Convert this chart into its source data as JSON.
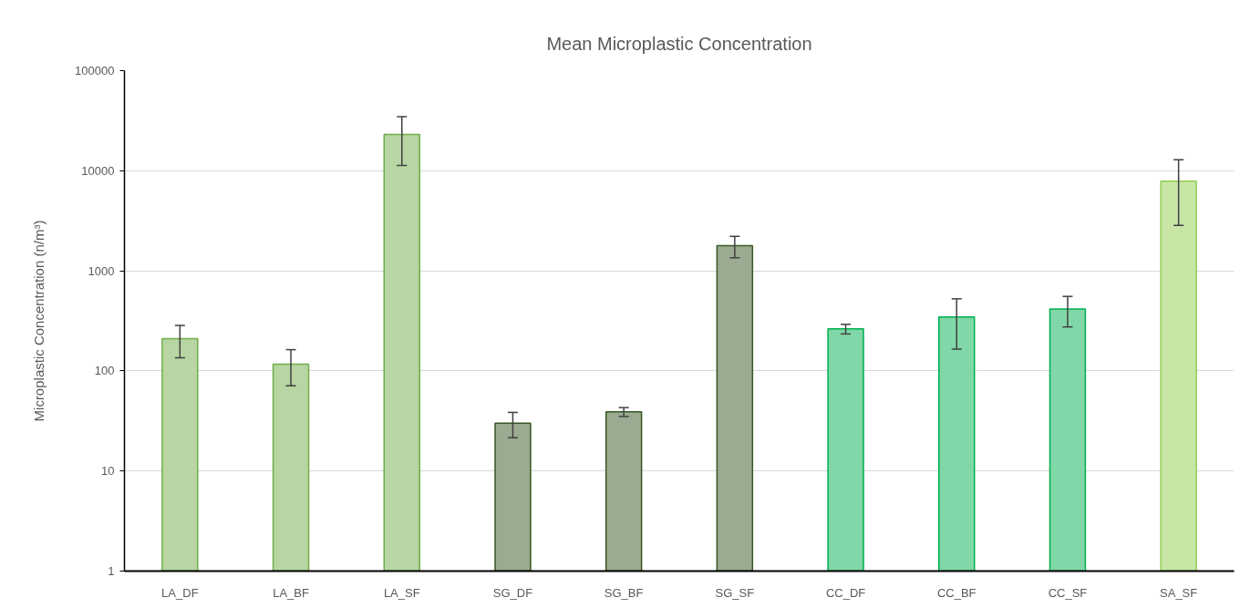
{
  "chart_data": {
    "type": "bar",
    "title": "Mean Microplastic Concentration",
    "ylabel": "Microplastic Concentration (n/m³)",
    "categories": [
      "LA_DF",
      "LA_BF",
      "LA_SF",
      "SG_DF",
      "SG_BF",
      "SG_SF",
      "CC_DF",
      "CC_BF",
      "CC_SF",
      "SA_SF"
    ],
    "values": [
      210,
      117,
      23000,
      30,
      39,
      1780,
      263,
      345,
      415,
      7850
    ],
    "errors": [
      75,
      46,
      11700,
      8.5,
      4,
      430,
      29,
      180,
      140,
      5000
    ],
    "colors": [
      "#b7d6a3",
      "#b7d6a3",
      "#b7d6a3",
      "#9bab91",
      "#9bab91",
      "#9bab91",
      "#80d7a7",
      "#80d7a7",
      "#80d7a7",
      "#c8e7a7"
    ],
    "log": true,
    "ylim": [
      1,
      100000
    ],
    "yticks": [
      1,
      10,
      100,
      1000,
      10000,
      100000
    ],
    "grid": "y"
  }
}
